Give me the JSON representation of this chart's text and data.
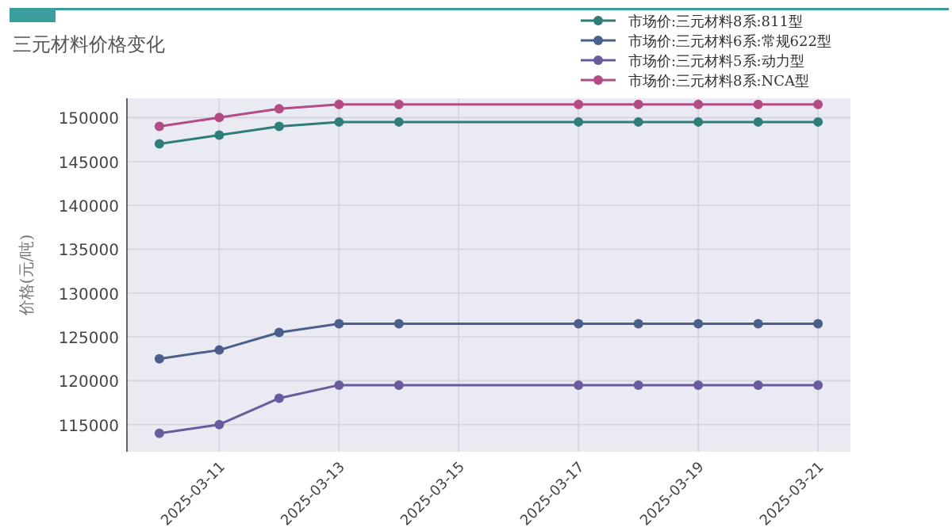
{
  "chart_data": {
    "type": "line",
    "title": "三元材料价格变化",
    "ylabel": "价格(元/吨)",
    "x": [
      "2025-03-10",
      "2025-03-11",
      "2025-03-12",
      "2025-03-13",
      "2025-03-14",
      "2025-03-17",
      "2025-03-18",
      "2025-03-19",
      "2025-03-20",
      "2025-03-21"
    ],
    "series": [
      {
        "name": "市场价:三元材料8系:811型",
        "color": "#2e7d7a",
        "values": [
          147000,
          148000,
          149000,
          149500,
          149500,
          149500,
          149500,
          149500,
          149500,
          149500
        ]
      },
      {
        "name": "市场价:三元材料6系:常规622型",
        "color": "#4a5f8c",
        "values": [
          122500,
          123500,
          125500,
          126500,
          126500,
          126500,
          126500,
          126500,
          126500,
          126500
        ]
      },
      {
        "name": "市场价:三元材料5系:动力型",
        "color": "#6a5a9e",
        "values": [
          114000,
          115000,
          118000,
          119500,
          119500,
          119500,
          119500,
          119500,
          119500,
          119500
        ]
      },
      {
        "name": "市场价:三元材料8系:NCA型",
        "color": "#b34b85",
        "values": [
          149000,
          150000,
          151000,
          151500,
          151500,
          151500,
          151500,
          151500,
          151500,
          151500
        ]
      }
    ],
    "xlim": [
      "2025-03-09T11:00",
      "2025-03-21T13:00"
    ],
    "xticks": [
      {
        "value": "2025-03-11",
        "label": "2025-03-11"
      },
      {
        "value": "2025-03-13",
        "label": "2025-03-13"
      },
      {
        "value": "2025-03-15",
        "label": "2025-03-15"
      },
      {
        "value": "2025-03-17",
        "label": "2025-03-17"
      },
      {
        "value": "2025-03-19",
        "label": "2025-03-19"
      },
      {
        "value": "2025-03-21",
        "label": "2025-03-21"
      }
    ],
    "ylim": [
      111900,
      152200
    ],
    "yticks": [
      115000,
      120000,
      125000,
      130000,
      135000,
      140000,
      145000,
      150000
    ],
    "grid": true,
    "legend": "top right",
    "marker": "circle",
    "line_style": "solid"
  }
}
